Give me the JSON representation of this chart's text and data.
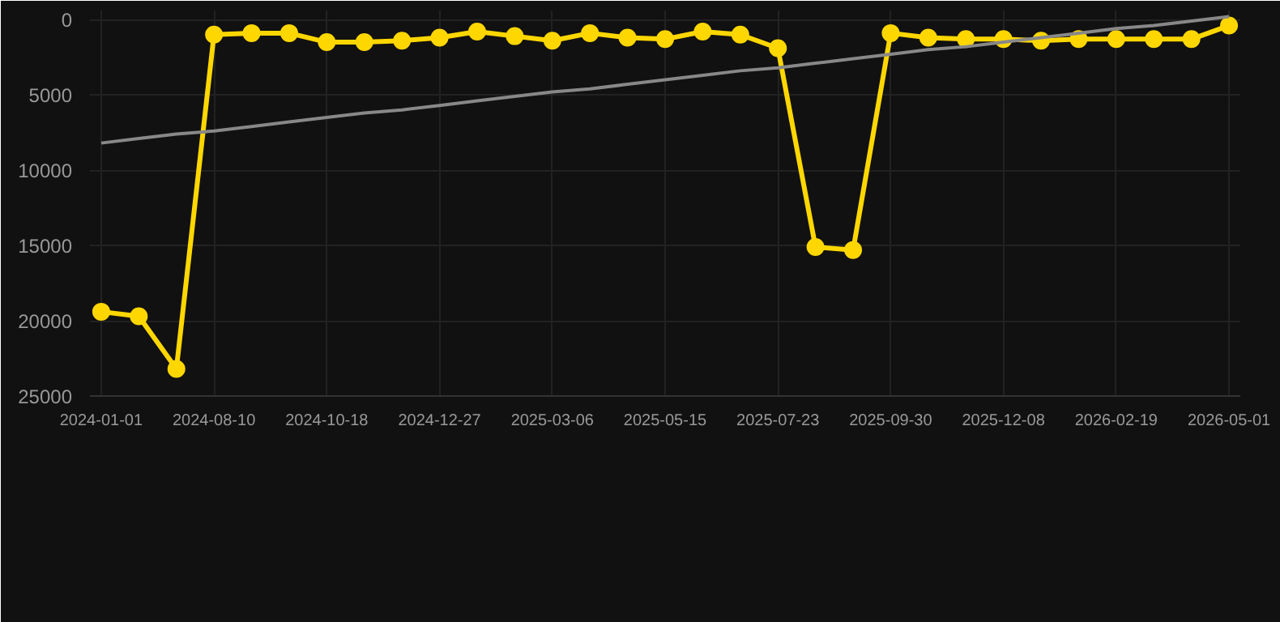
{
  "chart_data": {
    "type": "line",
    "categories": [
      "2024-01-01",
      null,
      null,
      "2024-08-10",
      null,
      null,
      "2024-10-18",
      null,
      null,
      "2024-12-27",
      null,
      null,
      "2025-03-06",
      null,
      null,
      "2025-05-15",
      null,
      null,
      "2025-07-23",
      null,
      null,
      "2025-09-30",
      null,
      null,
      "2025-12-08",
      null,
      null,
      "2026-02-19",
      null,
      null,
      "2026-05-01"
    ],
    "series": [
      {
        "color": "#ffd700",
        "marker": "circle",
        "values": [
          19400,
          19700,
          23200,
          1000,
          900,
          900,
          1500,
          1500,
          1400,
          1200,
          800,
          1100,
          1400,
          900,
          1200,
          1300,
          800,
          1000,
          1900,
          15100,
          15300,
          900,
          1200,
          1300,
          1300,
          1400,
          1300,
          1300,
          1300,
          1300,
          400
        ]
      },
      {
        "type": "line",
        "color": "#888888",
        "marker": "none",
        "values": [
          8200,
          7900,
          7600,
          7400,
          7100,
          6800,
          6500,
          6200,
          6000,
          5700,
          5400,
          5100,
          4800,
          4600,
          4300,
          4000,
          3700,
          3400,
          3200,
          2900,
          2600,
          2300,
          2000,
          1800,
          1500,
          1200,
          900,
          600,
          400,
          100,
          -200
        ]
      }
    ],
    "ylim": [
      25000,
      -600
    ],
    "yticks": [
      0,
      5000,
      10000,
      15000,
      20000,
      25000
    ],
    "grid": true
  }
}
